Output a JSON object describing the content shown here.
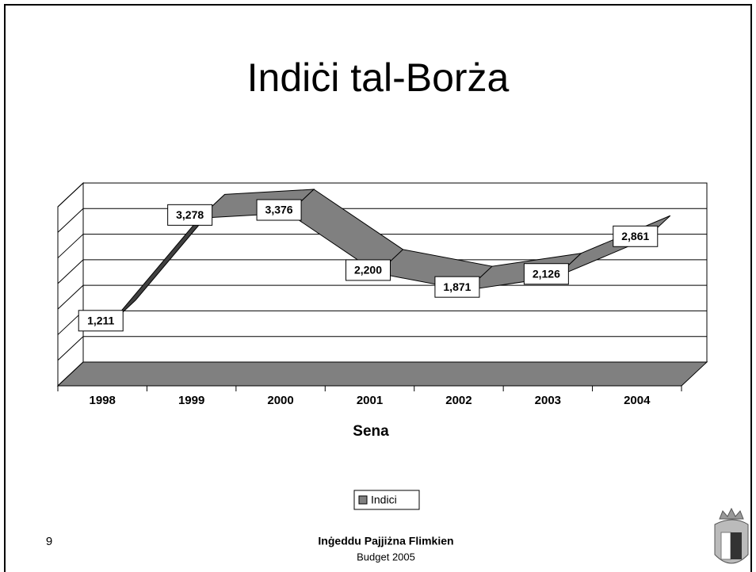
{
  "chart_data": {
    "type": "ribbon",
    "title": "Indiċi tal-Borża",
    "categories": [
      "1998",
      "1999",
      "2000",
      "2001",
      "2002",
      "2003",
      "2004"
    ],
    "series": [
      {
        "name": "Indici",
        "color": "#808080",
        "values": [
          1211,
          3278,
          3376,
          2200,
          1871,
          2126,
          2861
        ],
        "value_labels": [
          "1,211",
          "3,278",
          "3,376",
          "2,200",
          "1,871",
          "2,126",
          "2,861"
        ]
      }
    ],
    "x_label": "Sena",
    "ylim": [
      0,
      3500
    ],
    "yticks": [
      0,
      500,
      1000,
      1500,
      2000,
      2500,
      3000,
      3500
    ],
    "grid": true
  },
  "footer": {
    "page_number": "9",
    "slogan": "Inġeddu Pajjiżna Flimkien",
    "subtitle": "Budget 2005"
  }
}
